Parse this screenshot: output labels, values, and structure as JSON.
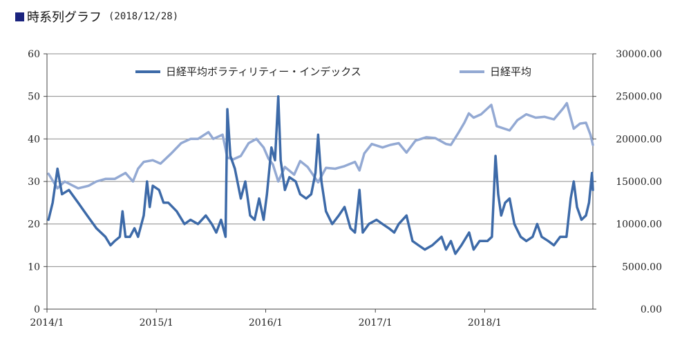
{
  "header": {
    "title": "時系列グラフ",
    "date": "(2018/12/28)"
  },
  "chart_data": {
    "type": "line",
    "left_axis": {
      "range": [
        0,
        60
      ],
      "ticks": [
        "0",
        "10",
        "20",
        "30",
        "40",
        "50",
        "60"
      ]
    },
    "right_axis": {
      "range": [
        0,
        30000
      ],
      "ticks": [
        "0.00",
        "5000.00",
        "10000.00",
        "15000.00",
        "20000.00",
        "25000.00",
        "30000.00"
      ]
    },
    "x_axis": {
      "range": [
        "2014-01-01",
        "2018-12-28"
      ],
      "ticks": [
        "2014/1",
        "2015/1",
        "2016/1",
        "2017/1",
        "2018/1"
      ]
    },
    "grid": "horizontal",
    "legend": {
      "placement": "top-center"
    },
    "series": [
      {
        "name": "日経平均ボラティリティー・インデックス",
        "axis": "left",
        "color": "#3d6aa8",
        "points": [
          [
            "2014-01-06",
            21
          ],
          [
            "2014-01-20",
            25
          ],
          [
            "2014-02-05",
            33
          ],
          [
            "2014-02-20",
            27
          ],
          [
            "2014-03-15",
            28
          ],
          [
            "2014-04-15",
            25
          ],
          [
            "2014-05-15",
            22
          ],
          [
            "2014-06-15",
            19
          ],
          [
            "2014-07-15",
            17
          ],
          [
            "2014-08-01",
            15
          ],
          [
            "2014-08-15",
            16
          ],
          [
            "2014-09-01",
            17
          ],
          [
            "2014-09-10",
            23
          ],
          [
            "2014-09-20",
            17
          ],
          [
            "2014-10-05",
            17
          ],
          [
            "2014-10-20",
            19
          ],
          [
            "2014-11-01",
            17
          ],
          [
            "2014-11-20",
            22
          ],
          [
            "2014-12-01",
            30
          ],
          [
            "2014-12-10",
            24
          ],
          [
            "2014-12-20",
            29
          ],
          [
            "2015-01-10",
            28
          ],
          [
            "2015-01-25",
            25
          ],
          [
            "2015-02-10",
            25
          ],
          [
            "2015-03-10",
            23
          ],
          [
            "2015-04-05",
            20
          ],
          [
            "2015-04-25",
            21
          ],
          [
            "2015-05-20",
            20
          ],
          [
            "2015-06-15",
            22
          ],
          [
            "2015-07-05",
            20
          ],
          [
            "2015-07-20",
            18
          ],
          [
            "2015-08-05",
            21
          ],
          [
            "2015-08-20",
            17
          ],
          [
            "2015-08-26",
            47
          ],
          [
            "2015-09-05",
            36
          ],
          [
            "2015-09-20",
            33
          ],
          [
            "2015-10-10",
            26
          ],
          [
            "2015-10-25",
            30
          ],
          [
            "2015-11-10",
            22
          ],
          [
            "2015-11-25",
            21
          ],
          [
            "2015-12-10",
            26
          ],
          [
            "2015-12-25",
            21
          ],
          [
            "2016-01-05",
            27
          ],
          [
            "2016-01-20",
            38
          ],
          [
            "2016-02-01",
            35
          ],
          [
            "2016-02-12",
            50
          ],
          [
            "2016-02-20",
            35
          ],
          [
            "2016-03-05",
            28
          ],
          [
            "2016-03-20",
            31
          ],
          [
            "2016-04-10",
            30
          ],
          [
            "2016-04-25",
            27
          ],
          [
            "2016-05-15",
            26
          ],
          [
            "2016-06-01",
            27
          ],
          [
            "2016-06-15",
            32
          ],
          [
            "2016-06-24",
            41
          ],
          [
            "2016-07-05",
            30
          ],
          [
            "2016-07-20",
            23
          ],
          [
            "2016-08-10",
            20
          ],
          [
            "2016-09-01",
            22
          ],
          [
            "2016-09-20",
            24
          ],
          [
            "2016-10-10",
            19
          ],
          [
            "2016-10-25",
            18
          ],
          [
            "2016-11-09",
            28
          ],
          [
            "2016-11-20",
            18
          ],
          [
            "2016-12-10",
            20
          ],
          [
            "2017-01-05",
            21
          ],
          [
            "2017-01-25",
            20
          ],
          [
            "2017-02-15",
            19
          ],
          [
            "2017-03-05",
            18
          ],
          [
            "2017-03-20",
            20
          ],
          [
            "2017-04-15",
            22
          ],
          [
            "2017-05-05",
            16
          ],
          [
            "2017-05-25",
            15
          ],
          [
            "2017-06-15",
            14
          ],
          [
            "2017-07-10",
            15
          ],
          [
            "2017-08-10",
            17
          ],
          [
            "2017-08-25",
            14
          ],
          [
            "2017-09-10",
            16
          ],
          [
            "2017-09-25",
            13
          ],
          [
            "2017-10-15",
            15
          ],
          [
            "2017-11-10",
            18
          ],
          [
            "2017-11-25",
            14
          ],
          [
            "2017-12-15",
            16
          ],
          [
            "2018-01-10",
            16
          ],
          [
            "2018-01-25",
            17
          ],
          [
            "2018-02-06",
            36
          ],
          [
            "2018-02-15",
            27
          ],
          [
            "2018-02-25",
            22
          ],
          [
            "2018-03-10",
            25
          ],
          [
            "2018-03-25",
            26
          ],
          [
            "2018-04-10",
            20
          ],
          [
            "2018-05-01",
            17
          ],
          [
            "2018-05-20",
            16
          ],
          [
            "2018-06-10",
            17
          ],
          [
            "2018-06-25",
            20
          ],
          [
            "2018-07-10",
            17
          ],
          [
            "2018-08-01",
            16
          ],
          [
            "2018-08-20",
            15
          ],
          [
            "2018-09-10",
            17
          ],
          [
            "2018-10-01",
            17
          ],
          [
            "2018-10-15",
            26
          ],
          [
            "2018-10-25",
            30
          ],
          [
            "2018-11-05",
            24
          ],
          [
            "2018-11-20",
            21
          ],
          [
            "2018-12-05",
            22
          ],
          [
            "2018-12-15",
            25
          ],
          [
            "2018-12-25",
            32
          ],
          [
            "2018-12-28",
            28
          ]
        ]
      },
      {
        "name": "日経平均",
        "axis": "right",
        "color": "#93a9d3",
        "points": [
          [
            "2014-01-06",
            15900
          ],
          [
            "2014-02-05",
            14200
          ],
          [
            "2014-03-01",
            15000
          ],
          [
            "2014-04-15",
            14200
          ],
          [
            "2014-05-20",
            14500
          ],
          [
            "2014-06-15",
            15000
          ],
          [
            "2014-07-15",
            15300
          ],
          [
            "2014-08-15",
            15300
          ],
          [
            "2014-09-20",
            16000
          ],
          [
            "2014-10-15",
            15000
          ],
          [
            "2014-11-01",
            16500
          ],
          [
            "2014-11-20",
            17300
          ],
          [
            "2014-12-20",
            17500
          ],
          [
            "2015-01-15",
            17100
          ],
          [
            "2015-02-20",
            18300
          ],
          [
            "2015-03-25",
            19500
          ],
          [
            "2015-04-25",
            20000
          ],
          [
            "2015-05-20",
            20000
          ],
          [
            "2015-06-24",
            20800
          ],
          [
            "2015-07-10",
            20000
          ],
          [
            "2015-08-10",
            20500
          ],
          [
            "2015-08-26",
            17800
          ],
          [
            "2015-09-15",
            17600
          ],
          [
            "2015-10-10",
            18000
          ],
          [
            "2015-11-05",
            19500
          ],
          [
            "2015-12-01",
            20000
          ],
          [
            "2015-12-25",
            19000
          ],
          [
            "2016-01-10",
            17700
          ],
          [
            "2016-01-25",
            17000
          ],
          [
            "2016-02-12",
            15000
          ],
          [
            "2016-03-05",
            16700
          ],
          [
            "2016-04-05",
            15800
          ],
          [
            "2016-04-25",
            17400
          ],
          [
            "2016-05-20",
            16700
          ],
          [
            "2016-06-24",
            14900
          ],
          [
            "2016-07-20",
            16600
          ],
          [
            "2016-08-20",
            16500
          ],
          [
            "2016-09-20",
            16800
          ],
          [
            "2016-10-25",
            17300
          ],
          [
            "2016-11-09",
            16300
          ],
          [
            "2016-11-25",
            18300
          ],
          [
            "2016-12-20",
            19400
          ],
          [
            "2017-01-25",
            19000
          ],
          [
            "2017-02-20",
            19300
          ],
          [
            "2017-03-20",
            19500
          ],
          [
            "2017-04-15",
            18400
          ],
          [
            "2017-05-15",
            19800
          ],
          [
            "2017-06-20",
            20200
          ],
          [
            "2017-07-20",
            20100
          ],
          [
            "2017-08-25",
            19400
          ],
          [
            "2017-09-10",
            19300
          ],
          [
            "2017-10-05",
            20700
          ],
          [
            "2017-10-25",
            21900
          ],
          [
            "2017-11-09",
            23000
          ],
          [
            "2017-11-25",
            22500
          ],
          [
            "2017-12-20",
            22900
          ],
          [
            "2018-01-23",
            24000
          ],
          [
            "2018-02-10",
            21500
          ],
          [
            "2018-03-25",
            21000
          ],
          [
            "2018-04-20",
            22200
          ],
          [
            "2018-05-20",
            22900
          ],
          [
            "2018-06-20",
            22500
          ],
          [
            "2018-07-20",
            22600
          ],
          [
            "2018-08-20",
            22300
          ],
          [
            "2018-09-20",
            23600
          ],
          [
            "2018-10-02",
            24200
          ],
          [
            "2018-10-25",
            21200
          ],
          [
            "2018-11-15",
            21800
          ],
          [
            "2018-12-05",
            21900
          ],
          [
            "2018-12-20",
            20500
          ],
          [
            "2018-12-28",
            19300
          ]
        ]
      }
    ]
  }
}
